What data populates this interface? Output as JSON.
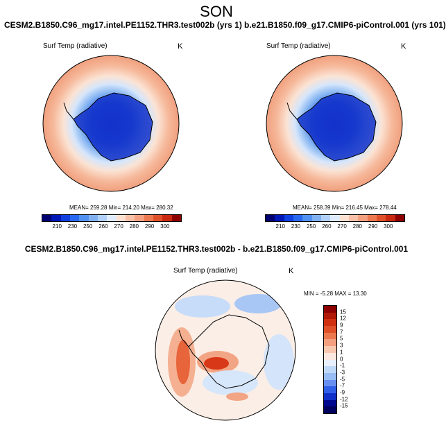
{
  "season": "SON",
  "panels": [
    {
      "title": "CESM2.B1850.C96_mg17.intel.PE1152.THR3.test002b (yrs 1)",
      "variable": "Surf Temp (radiative)",
      "units": "K",
      "stats": "MEAN= 259.28  Min= 214.20  Max= 280.32"
    },
    {
      "title": "b.e21.B1850.f09_g17.CMIP6-piControl.001 (yrs 101)",
      "variable": "Surf Temp (radiative)",
      "units": "K",
      "stats": "MEAN= 258.39  Min= 216.45  Max= 278.44"
    }
  ],
  "abs_colorbar": {
    "labels": [
      "210",
      "230",
      "250",
      "260",
      "270",
      "280",
      "290",
      "300"
    ],
    "colors": [
      "#000070",
      "#0018b8",
      "#1040e0",
      "#2868f0",
      "#5090f0",
      "#80b0f0",
      "#b0d0f8",
      "#e0ecfc",
      "#fce0d0",
      "#f8c0a8",
      "#f4a080",
      "#ec7850",
      "#e05028",
      "#c82810",
      "#8c0000"
    ]
  },
  "diff_panel": {
    "title": "CESM2.B1850.C96_mg17.intel.PE1152.THR3.test002b - b.e21.B1850.f09_g17.CMIP6-piControl.001",
    "variable": "Surf Temp (radiative)",
    "units": "K",
    "stats": "MIN = -5.28 MAX =  13.30",
    "colorbar_labels": [
      "15",
      "12",
      "9",
      "7",
      "5",
      "3",
      "1",
      "0",
      "-1",
      "-3",
      "-5",
      "-7",
      "-9",
      "-12",
      "-15"
    ],
    "colorbar_colors": [
      "#8c0000",
      "#b01808",
      "#d03010",
      "#e05028",
      "#ec7850",
      "#f4a080",
      "#f8c8b0",
      "#fce8e0",
      "#e8f0fc",
      "#c0d8f8",
      "#98bcf4",
      "#6890f0",
      "#3060e8",
      "#1030c8",
      "#000890",
      "#000060"
    ]
  }
}
